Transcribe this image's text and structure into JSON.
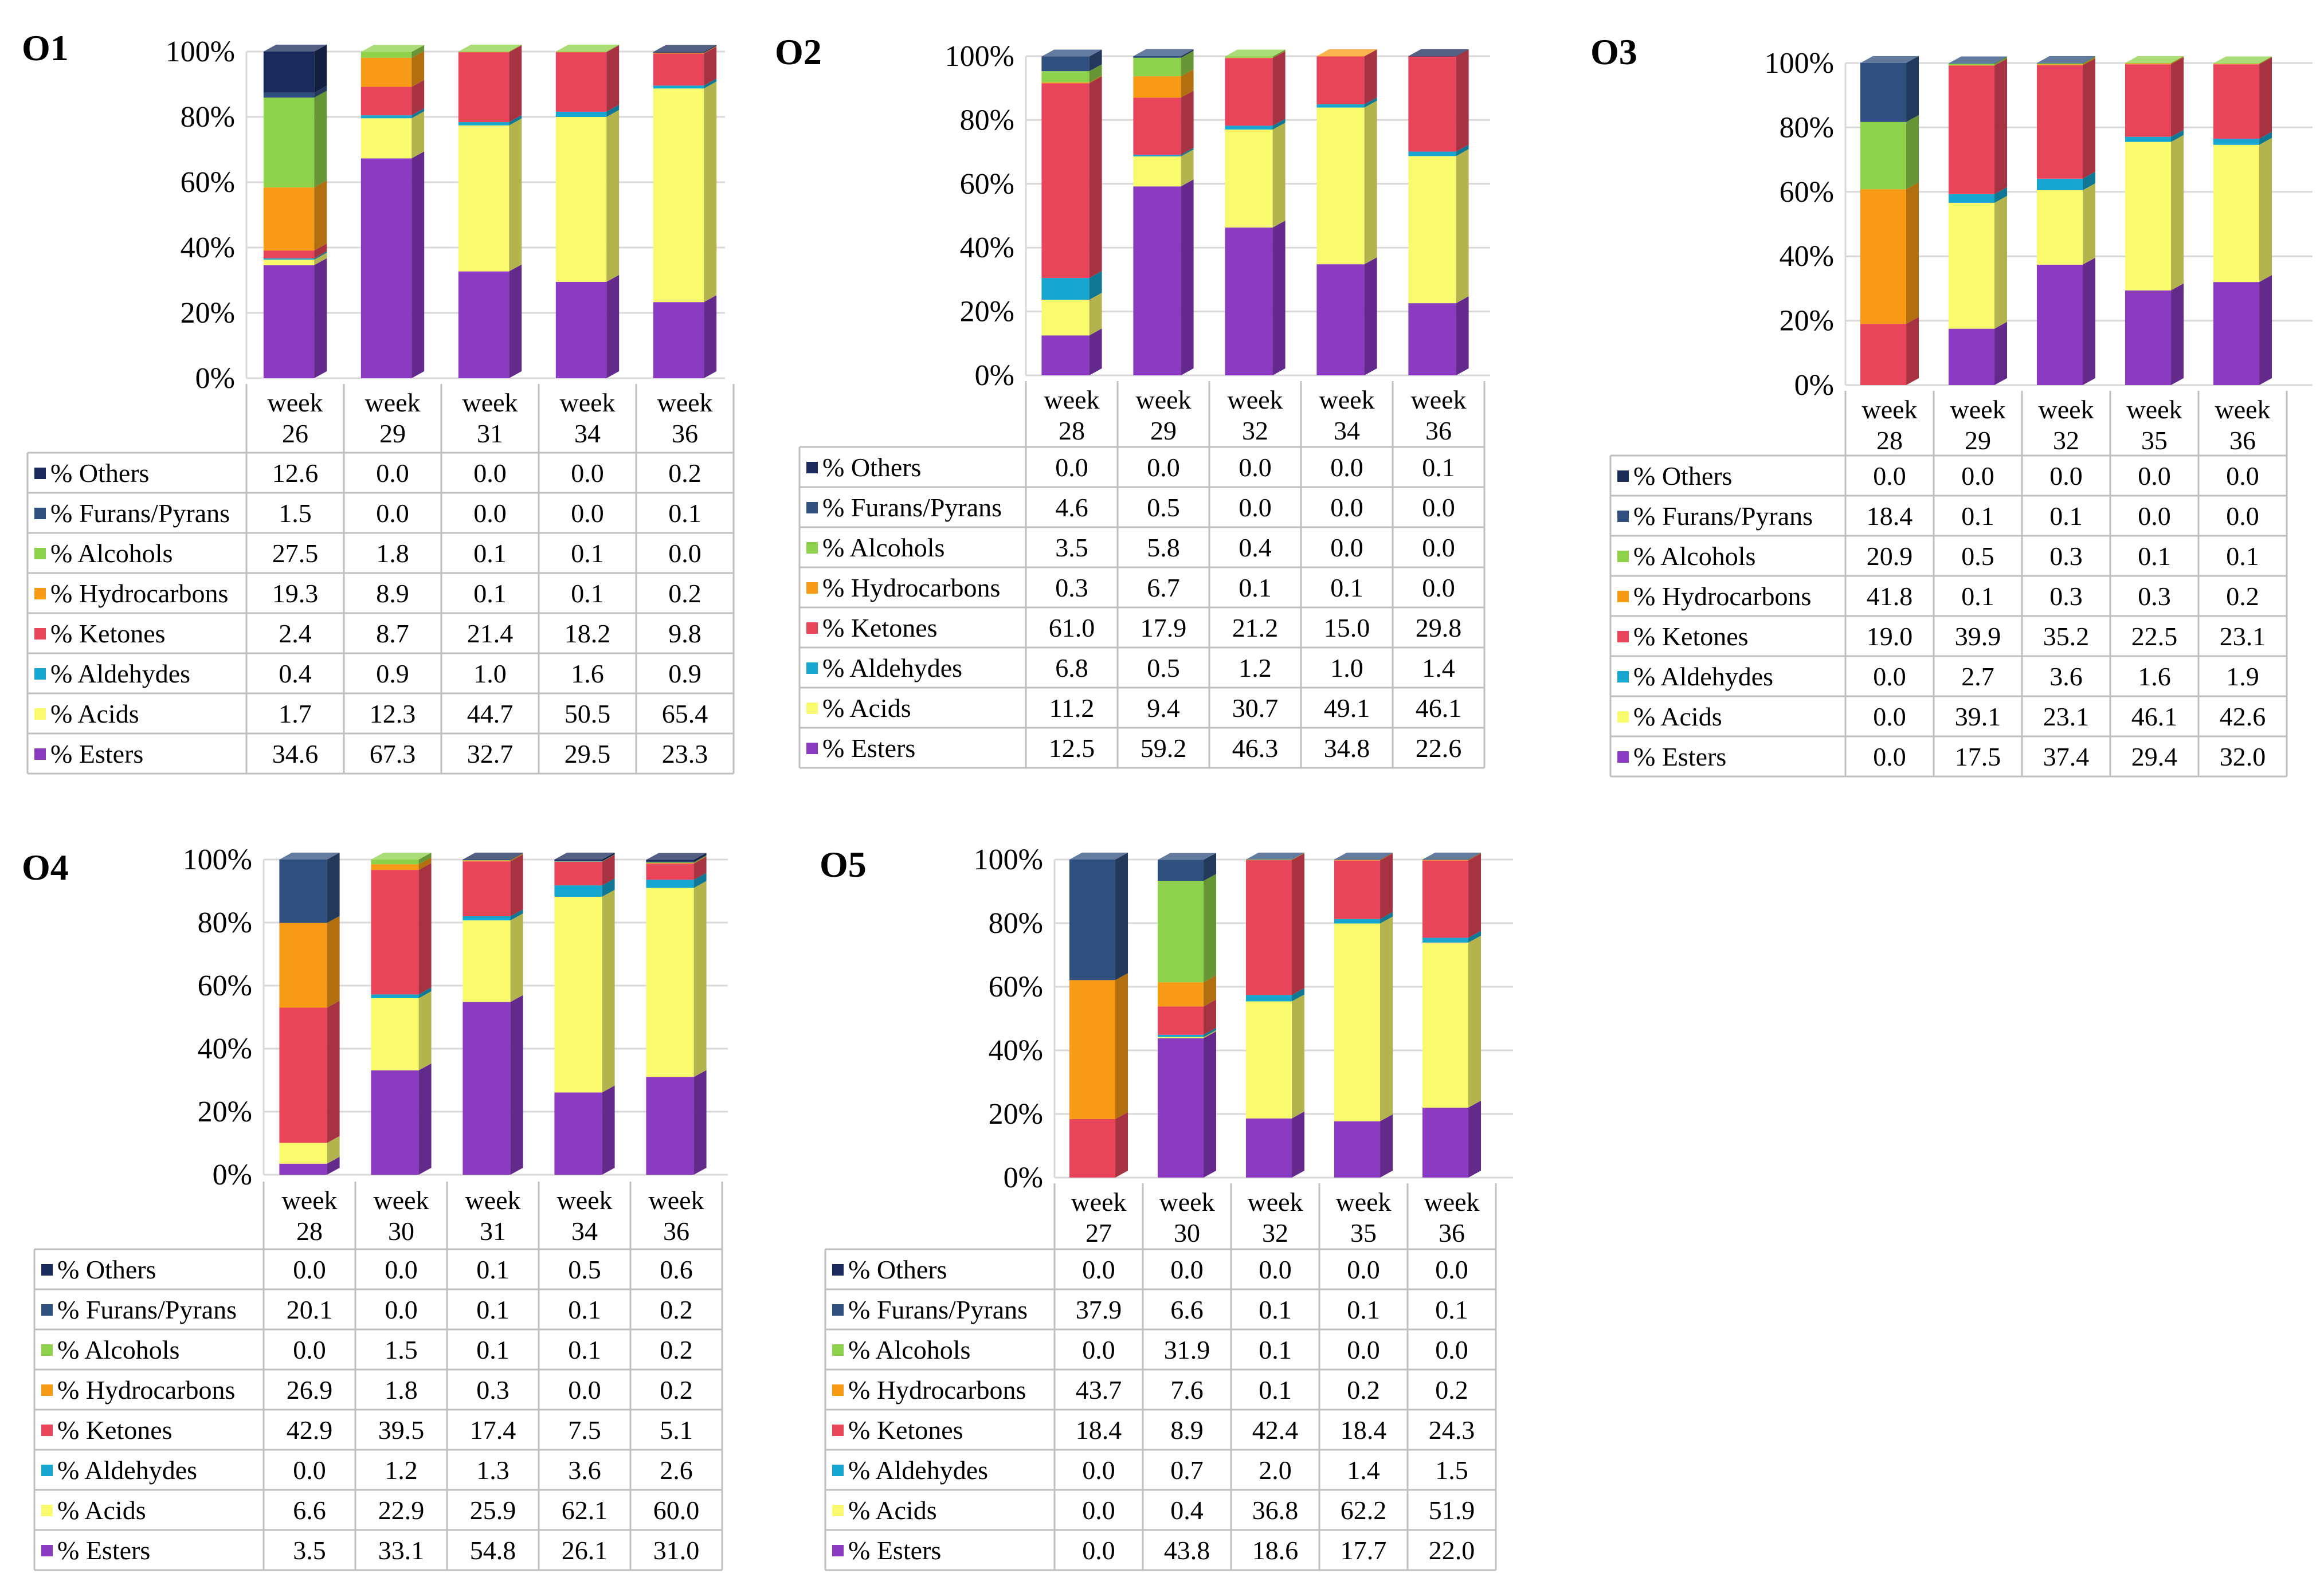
{
  "figure": {
    "series_order": [
      "Esters",
      "Acids",
      "Aldehydes",
      "Ketones",
      "Hydrocarbons",
      "Alcohols",
      "Furans/Pyrans",
      "Others"
    ],
    "table_order": [
      "Others",
      "Furans/Pyrans",
      "Alcohols",
      "Hydrocarbons",
      "Ketones",
      "Aldehydes",
      "Acids",
      "Esters"
    ],
    "colors": {
      "Esters": "#8a3bc2",
      "Acids": "#fafa6e",
      "Aldehydes": "#16a6cf",
      "Ketones": "#e8455a",
      "Hydrocarbons": "#f79a15",
      "Alcohols": "#8ed14a",
      "Furans/Pyrans": "#2f4f7f",
      "Others": "#1a2a5a"
    },
    "legend_labels": {
      "Others": "% Others",
      "Furans/Pyrans": "% Furans/Pyrans",
      "Alcohols": "% Alcohols",
      "Hydrocarbons": "% Hydrocarbons",
      "Ketones": "% Ketones",
      "Aldehydes": "% Aldehydes",
      "Acids": "% Acids",
      "Esters": "% Esters"
    },
    "y_ticks": [
      "0%",
      "20%",
      "40%",
      "60%",
      "80%",
      "100%"
    ]
  },
  "chart_data": [
    {
      "type": "bar",
      "stacked": true,
      "title": "O1",
      "categories": [
        [
          "week",
          "26"
        ],
        [
          "week",
          "29"
        ],
        [
          "week",
          "31"
        ],
        [
          "week",
          "34"
        ],
        [
          "week",
          "36"
        ]
      ],
      "ylim": [
        0,
        100
      ],
      "series": [
        {
          "name": "Others",
          "values": [
            12.6,
            0.0,
            0.0,
            0.0,
            0.2
          ]
        },
        {
          "name": "Furans/Pyrans",
          "values": [
            1.5,
            0.0,
            0.0,
            0.0,
            0.1
          ]
        },
        {
          "name": "Alcohols",
          "values": [
            27.5,
            1.8,
            0.1,
            0.1,
            0.0
          ]
        },
        {
          "name": "Hydrocarbons",
          "values": [
            19.3,
            8.9,
            0.1,
            0.1,
            0.2
          ]
        },
        {
          "name": "Ketones",
          "values": [
            2.4,
            8.7,
            21.4,
            18.2,
            9.8
          ]
        },
        {
          "name": "Aldehydes",
          "values": [
            0.4,
            0.9,
            1.0,
            1.6,
            0.9
          ]
        },
        {
          "name": "Acids",
          "values": [
            1.7,
            12.3,
            44.7,
            50.5,
            65.4
          ]
        },
        {
          "name": "Esters",
          "values": [
            34.6,
            67.3,
            32.7,
            29.5,
            23.3
          ]
        }
      ],
      "table_text": {
        "Others": [
          "12.6",
          "0.0",
          "0.0",
          "0.0",
          "0.2"
        ],
        "Furans/Pyrans": [
          "1.5",
          "0.0",
          "0.0",
          "0.0",
          "0.1"
        ],
        "Alcohols": [
          "27.5",
          "1.8",
          "0.1",
          "0.1",
          "0.0"
        ],
        "Hydrocarbons": [
          "19.3",
          "8.9",
          "0.1",
          "0.1",
          "0.2"
        ],
        "Ketones": [
          "2.4",
          "8.7",
          "21.4",
          "18.2",
          "9.8"
        ],
        "Aldehydes": [
          "0.4",
          "0.9",
          "1.0",
          "1.6",
          "0.9"
        ],
        "Acids": [
          "1.7",
          "12.3",
          "44.7",
          "50.5",
          "65.4"
        ],
        "Esters": [
          "34.6",
          "67.3",
          "32.7",
          "29.5",
          "23.3"
        ]
      }
    },
    {
      "type": "bar",
      "stacked": true,
      "title": "O2",
      "categories": [
        [
          "week",
          "28"
        ],
        [
          "week",
          "29"
        ],
        [
          "week",
          "32"
        ],
        [
          "week",
          "34"
        ],
        [
          "week",
          "36"
        ]
      ],
      "ylim": [
        0,
        100
      ],
      "series": [
        {
          "name": "Others",
          "values": [
            0.0,
            0.0,
            0.0,
            0.0,
            0.1
          ]
        },
        {
          "name": "Furans/Pyrans",
          "values": [
            4.6,
            0.5,
            0.0,
            0.0,
            0.0
          ]
        },
        {
          "name": "Alcohols",
          "values": [
            3.5,
            5.8,
            0.4,
            0.0,
            0.0
          ]
        },
        {
          "name": "Hydrocarbons",
          "values": [
            0.3,
            6.7,
            0.1,
            0.1,
            0.0
          ]
        },
        {
          "name": "Ketones",
          "values": [
            61.0,
            17.9,
            21.2,
            15.0,
            29.8
          ]
        },
        {
          "name": "Aldehydes",
          "values": [
            6.8,
            0.5,
            1.2,
            1.0,
            1.4
          ]
        },
        {
          "name": "Acids",
          "values": [
            11.2,
            9.4,
            30.7,
            49.1,
            46.1
          ]
        },
        {
          "name": "Esters",
          "values": [
            12.5,
            59.2,
            46.3,
            34.8,
            22.6
          ]
        }
      ],
      "table_text": {
        "Others": [
          "0.0",
          "0.0",
          "0.0",
          "0.0",
          "0.1"
        ],
        "Furans/Pyrans": [
          "4.6",
          "0.5",
          "0.0",
          "0.0",
          "0.0"
        ],
        "Alcohols": [
          "3.5",
          "5.8",
          "0.4",
          "0.0",
          "0.0"
        ],
        "Hydrocarbons": [
          "0.3",
          "6.7",
          "0.1",
          "0.1",
          "0.0"
        ],
        "Ketones": [
          "61.0",
          "17.9",
          "21.2",
          "15.0",
          "29.8"
        ],
        "Aldehydes": [
          "6.8",
          "0.5",
          "1.2",
          "1.0",
          "1.4"
        ],
        "Acids": [
          "11.2",
          "9.4",
          "30.7",
          "49.1",
          "46.1"
        ],
        "Esters": [
          "12.5",
          "59.2",
          "46.3",
          "34.8",
          "22.6"
        ]
      }
    },
    {
      "type": "bar",
      "stacked": true,
      "title": "O3",
      "categories": [
        [
          "week",
          "28"
        ],
        [
          "week",
          "29"
        ],
        [
          "week",
          "32"
        ],
        [
          "week",
          "35"
        ],
        [
          "week",
          "36"
        ]
      ],
      "ylim": [
        0,
        100
      ],
      "series": [
        {
          "name": "Others",
          "values": [
            0.0,
            0.0,
            0.0,
            0.0,
            0.0
          ]
        },
        {
          "name": "Furans/Pyrans",
          "values": [
            18.4,
            0.1,
            0.1,
            0.0,
            0.0
          ]
        },
        {
          "name": "Alcohols",
          "values": [
            20.9,
            0.5,
            0.3,
            0.1,
            0.1
          ]
        },
        {
          "name": "Hydrocarbons",
          "values": [
            41.8,
            0.1,
            0.3,
            0.3,
            0.2
          ]
        },
        {
          "name": "Ketones",
          "values": [
            19.0,
            39.9,
            35.2,
            22.5,
            23.1
          ]
        },
        {
          "name": "Aldehydes",
          "values": [
            0.0,
            2.7,
            3.6,
            1.6,
            1.9
          ]
        },
        {
          "name": "Acids",
          "values": [
            0.0,
            39.1,
            23.1,
            46.1,
            42.6
          ]
        },
        {
          "name": "Esters",
          "values": [
            0.0,
            17.5,
            37.4,
            29.4,
            32.0
          ]
        }
      ],
      "table_text": {
        "Others": [
          "0.0",
          "0.0",
          "0.0",
          "0.0",
          "0.0"
        ],
        "Furans/Pyrans": [
          "18.4",
          "0.1",
          "0.1",
          "0.0",
          "0.0"
        ],
        "Alcohols": [
          "20.9",
          "0.5",
          "0.3",
          "0.1",
          "0.1"
        ],
        "Hydrocarbons": [
          "41.8",
          "0.1",
          "0.3",
          "0.3",
          "0.2"
        ],
        "Ketones": [
          "19.0",
          "39.9",
          "35.2",
          "22.5",
          "23.1"
        ],
        "Aldehydes": [
          "0.0",
          "2.7",
          "3.6",
          "1.6",
          "1.9"
        ],
        "Acids": [
          "0.0",
          "39.1",
          "23.1",
          "46.1",
          "42.6"
        ],
        "Esters": [
          "0.0",
          "17.5",
          "37.4",
          "29.4",
          "32.0"
        ]
      }
    },
    {
      "type": "bar",
      "stacked": true,
      "title": "O4",
      "categories": [
        [
          "week",
          "28"
        ],
        [
          "week",
          "30"
        ],
        [
          "week",
          "31"
        ],
        [
          "week",
          "34"
        ],
        [
          "week",
          "36"
        ]
      ],
      "ylim": [
        0,
        100
      ],
      "series": [
        {
          "name": "Others",
          "values": [
            0.0,
            0.0,
            0.1,
            0.5,
            0.6
          ]
        },
        {
          "name": "Furans/Pyrans",
          "values": [
            20.1,
            0.0,
            0.1,
            0.1,
            0.2
          ]
        },
        {
          "name": "Alcohols",
          "values": [
            0.0,
            1.5,
            0.1,
            0.1,
            0.2
          ]
        },
        {
          "name": "Hydrocarbons",
          "values": [
            26.9,
            1.8,
            0.3,
            0.0,
            0.2
          ]
        },
        {
          "name": "Ketones",
          "values": [
            42.9,
            39.5,
            17.4,
            7.5,
            5.1
          ]
        },
        {
          "name": "Aldehydes",
          "values": [
            0.0,
            1.2,
            1.3,
            3.6,
            2.6
          ]
        },
        {
          "name": "Acids",
          "values": [
            6.6,
            22.9,
            25.9,
            62.1,
            60.0
          ]
        },
        {
          "name": "Esters",
          "values": [
            3.5,
            33.1,
            54.8,
            26.1,
            31.0
          ]
        }
      ],
      "table_text": {
        "Others": [
          "0.0",
          "0.0",
          "0.1",
          "0.5",
          "0.6"
        ],
        "Furans/Pyrans": [
          "20.1",
          "0.0",
          "0.1",
          "0.1",
          "0.2"
        ],
        "Alcohols": [
          "0.0",
          "1.5",
          "0.1",
          "0.1",
          "0.2"
        ],
        "Hydrocarbons": [
          "26.9",
          "1.8",
          "0.3",
          "0.0",
          "0.2"
        ],
        "Ketones": [
          "42.9",
          "39.5",
          "17.4",
          "7.5",
          "5.1"
        ],
        "Aldehydes": [
          "0.0",
          "1.2",
          "1.3",
          "3.6",
          "2.6"
        ],
        "Acids": [
          "6.6",
          "22.9",
          "25.9",
          "62.1",
          "60.0"
        ],
        "Esters": [
          "3.5",
          "33.1",
          "54.8",
          "26.1",
          "31.0"
        ]
      }
    },
    {
      "type": "bar",
      "stacked": true,
      "title": "O5",
      "categories": [
        [
          "week",
          "27"
        ],
        [
          "week",
          "30"
        ],
        [
          "week",
          "32"
        ],
        [
          "week",
          "35"
        ],
        [
          "week",
          "36"
        ]
      ],
      "ylim": [
        0,
        100
      ],
      "series": [
        {
          "name": "Others",
          "values": [
            0.0,
            0.0,
            0.0,
            0.0,
            0.0
          ]
        },
        {
          "name": "Furans/Pyrans",
          "values": [
            37.9,
            6.6,
            0.1,
            0.1,
            0.1
          ]
        },
        {
          "name": "Alcohols",
          "values": [
            0.0,
            31.9,
            0.1,
            0.0,
            0.0
          ]
        },
        {
          "name": "Hydrocarbons",
          "values": [
            43.7,
            7.6,
            0.1,
            0.2,
            0.2
          ]
        },
        {
          "name": "Ketones",
          "values": [
            18.4,
            8.9,
            42.4,
            18.4,
            24.3
          ]
        },
        {
          "name": "Aldehydes",
          "values": [
            0.0,
            0.7,
            2.0,
            1.4,
            1.5
          ]
        },
        {
          "name": "Acids",
          "values": [
            0.0,
            0.4,
            36.8,
            62.2,
            51.9
          ]
        },
        {
          "name": "Esters",
          "values": [
            0.0,
            43.8,
            18.6,
            17.7,
            22.0
          ]
        }
      ],
      "table_text": {
        "Others": [
          "0.0",
          "0.0",
          "0.0",
          "0.0",
          "0.0"
        ],
        "Furans/Pyrans": [
          "37.9",
          "6.6",
          "0.1",
          "0.1",
          "0.1"
        ],
        "Alcohols": [
          "0.0",
          "31.9",
          "0.1",
          "0.0",
          "0.0"
        ],
        "Hydrocarbons": [
          "43.7",
          "7.6",
          "0.1",
          "0.2",
          "0.2"
        ],
        "Ketones": [
          "18.4",
          "8.9",
          "42.4",
          "18.4",
          "24.3"
        ],
        "Aldehydes": [
          "0.0",
          "0.7",
          "2.0",
          "1.4",
          "1.5"
        ],
        "Acids": [
          "0.0",
          "0.4",
          "36.8",
          "62.2",
          "51.9"
        ],
        "Esters": [
          "0.0",
          "43.8",
          "18.6",
          "17.7",
          "22.0"
        ]
      }
    }
  ]
}
